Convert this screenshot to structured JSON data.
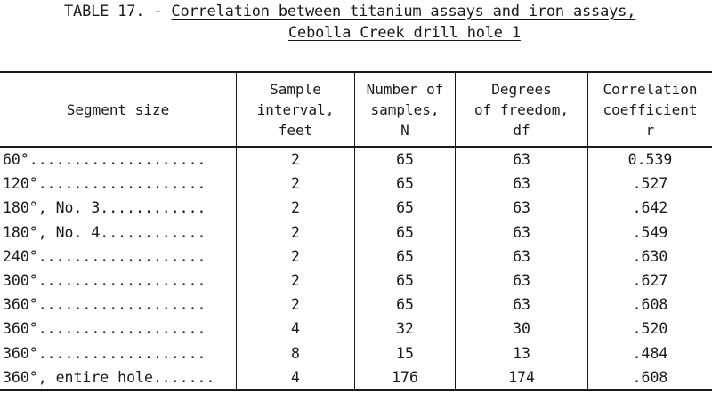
{
  "title": {
    "prefix": "TABLE 17. - ",
    "line1": "Correlation between titanium assays and iron assays,",
    "line2": "Cebolla Creek drill hole 1"
  },
  "headers": [
    [
      "Segment size"
    ],
    [
      "Sample",
      "interval,",
      "feet"
    ],
    [
      "Number of",
      "samples,",
      "N"
    ],
    [
      "Degrees",
      "of freedom,",
      "df"
    ],
    [
      "Correlation",
      "coefficient",
      "r"
    ]
  ],
  "rows": [
    [
      "60°....................",
      "2",
      "65",
      "63",
      "0.539"
    ],
    [
      "120°...................",
      "2",
      "65",
      "63",
      ".527"
    ],
    [
      "180°, No. 3............",
      "2",
      "65",
      "63",
      ".642"
    ],
    [
      "180°, No. 4............",
      "2",
      "65",
      "63",
      ".549"
    ],
    [
      "240°...................",
      "2",
      "65",
      "63",
      ".630"
    ],
    [
      "300°...................",
      "2",
      "65",
      "63",
      ".627"
    ],
    [
      "360°...................",
      "2",
      "65",
      "63",
      ".608"
    ],
    [
      "360°...................",
      "4",
      "32",
      "30",
      ".520"
    ],
    [
      "360°...................",
      "8",
      "15",
      "13",
      ".484"
    ],
    [
      "360°, entire hole.......",
      "4",
      "176",
      "174",
      ".608"
    ]
  ]
}
